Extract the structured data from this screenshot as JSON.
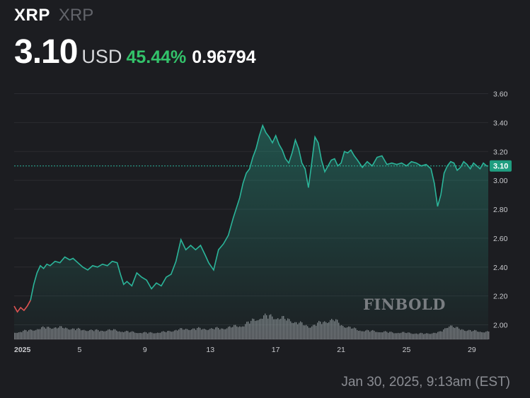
{
  "header": {
    "symbol": "XRP",
    "name": "XRP",
    "price": "3.10",
    "currency": "USD",
    "change_percent": "45.44%",
    "change_value": "0.96794"
  },
  "timestamp": "Jan 30, 2025, 9:13am (EST)",
  "watermark": "FINBOLD",
  "colors": {
    "background": "#1c1d21",
    "line": "#2bb59a",
    "line_down": "#e05252",
    "positive": "#33c26a",
    "price_tag": "#1f9e80",
    "volume": "#9a9ba0"
  },
  "chart_data": {
    "type": "area",
    "x_axis": {
      "ticks": [
        "2025",
        "5",
        "9",
        "13",
        "17",
        "21",
        "25",
        "29"
      ],
      "tick_days": [
        1,
        5,
        9,
        13,
        17,
        21,
        25,
        29
      ],
      "range_days": [
        1,
        30
      ]
    },
    "y_axis": {
      "ticks": [
        "2.00",
        "2.20",
        "2.40",
        "2.60",
        "2.80",
        "3.00",
        "3.20",
        "3.40",
        "3.60"
      ],
      "range": [
        1.9,
        3.72
      ],
      "side": "right"
    },
    "current_price": 3.1,
    "current_price_label": "3.10",
    "series": [
      {
        "x": [
          1.0,
          1.2,
          1.4,
          1.6,
          1.8,
          2.0,
          2.2,
          2.4,
          2.6,
          2.8,
          3.0,
          3.2,
          3.5,
          3.8,
          4.1,
          4.4,
          4.6,
          4.9,
          5.2,
          5.5,
          5.8,
          6.1,
          6.4,
          6.7,
          7.0,
          7.3,
          7.5,
          7.7,
          7.9,
          8.2,
          8.5,
          8.8,
          9.1,
          9.4,
          9.7,
          10.0,
          10.3,
          10.6,
          10.9,
          11.2,
          11.5,
          11.8,
          12.1,
          12.4,
          12.7,
          12.9,
          13.2,
          13.5,
          13.8,
          14.1,
          14.4,
          14.6,
          14.8,
          15.0,
          15.2,
          15.4,
          15.6,
          15.8,
          16.0,
          16.2,
          16.4,
          16.6,
          16.8,
          17.0,
          17.2,
          17.4,
          17.6,
          17.8,
          18.0,
          18.2,
          18.4,
          18.6,
          18.8,
          19.0,
          19.2,
          19.4,
          19.6,
          19.8,
          20.0,
          20.2,
          20.4,
          20.6,
          20.8,
          21.0,
          21.2,
          21.4,
          21.6,
          21.8,
          22.0,
          22.3,
          22.6,
          22.9,
          23.2,
          23.5,
          23.8,
          24.1,
          24.4,
          24.7,
          25.0,
          25.3,
          25.6,
          25.9,
          26.2,
          26.5,
          26.7,
          26.9,
          27.1,
          27.3,
          27.5,
          27.7,
          27.9,
          28.1,
          28.3,
          28.5,
          28.7,
          28.9,
          29.1,
          29.3,
          29.5,
          29.7,
          29.9,
          30.0
        ],
        "values": [
          2.13,
          2.09,
          2.12,
          2.1,
          2.13,
          2.17,
          2.28,
          2.36,
          2.41,
          2.39,
          2.42,
          2.41,
          2.44,
          2.43,
          2.47,
          2.45,
          2.46,
          2.43,
          2.4,
          2.38,
          2.41,
          2.4,
          2.42,
          2.41,
          2.44,
          2.43,
          2.35,
          2.28,
          2.3,
          2.27,
          2.36,
          2.33,
          2.31,
          2.25,
          2.29,
          2.27,
          2.33,
          2.35,
          2.44,
          2.59,
          2.52,
          2.55,
          2.52,
          2.55,
          2.48,
          2.43,
          2.38,
          2.52,
          2.56,
          2.62,
          2.74,
          2.81,
          2.88,
          2.98,
          3.05,
          3.08,
          3.16,
          3.22,
          3.31,
          3.38,
          3.33,
          3.3,
          3.26,
          3.31,
          3.25,
          3.21,
          3.15,
          3.12,
          3.19,
          3.28,
          3.22,
          3.12,
          3.08,
          2.95,
          3.12,
          3.3,
          3.26,
          3.14,
          3.06,
          3.1,
          3.14,
          3.15,
          3.1,
          3.12,
          3.2,
          3.19,
          3.21,
          3.17,
          3.14,
          3.09,
          3.13,
          3.1,
          3.16,
          3.17,
          3.11,
          3.12,
          3.11,
          3.12,
          3.1,
          3.13,
          3.12,
          3.1,
          3.11,
          3.08,
          2.98,
          2.82,
          2.9,
          3.05,
          3.1,
          3.13,
          3.12,
          3.07,
          3.09,
          3.13,
          3.11,
          3.08,
          3.12,
          3.1,
          3.08,
          3.12,
          3.1,
          3.1
        ]
      }
    ],
    "volume": {
      "x": [
        1,
        2,
        3,
        4,
        5,
        6,
        7,
        8,
        9,
        10,
        11,
        12,
        13,
        14,
        15,
        16,
        16.5,
        17,
        18,
        19,
        20,
        20.5,
        21,
        22,
        23,
        24,
        25,
        26,
        27,
        27.6,
        28,
        29,
        30
      ],
      "values": [
        0.3,
        0.4,
        0.52,
        0.5,
        0.42,
        0.38,
        0.4,
        0.32,
        0.28,
        0.3,
        0.42,
        0.46,
        0.45,
        0.5,
        0.62,
        0.95,
        1.0,
        0.96,
        0.8,
        0.55,
        0.78,
        0.85,
        0.62,
        0.4,
        0.35,
        0.3,
        0.28,
        0.24,
        0.3,
        0.62,
        0.48,
        0.36,
        0.32
      ]
    }
  }
}
